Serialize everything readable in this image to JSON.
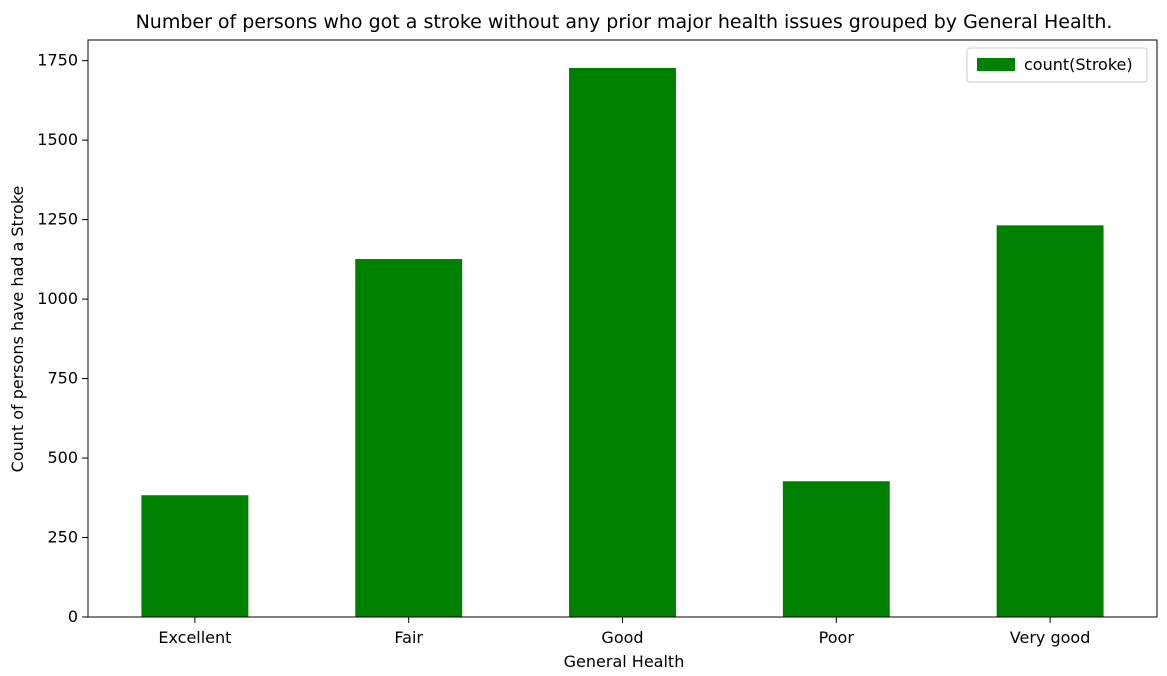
{
  "chart_data": {
    "type": "bar",
    "title": "Number of persons who got a stroke without any prior major health issues grouped by General Health.",
    "xlabel": "General Health",
    "ylabel": "Count of persons have had a Stroke",
    "categories": [
      "Excellent",
      "Fair",
      "Good",
      "Poor",
      "Very good"
    ],
    "series": [
      {
        "name": "count(Stroke)",
        "values": [
          383,
          1126,
          1727,
          427,
          1232
        ],
        "color": "#008000"
      }
    ],
    "ylim": [
      0,
      1815
    ],
    "yticks": [
      0,
      250,
      500,
      750,
      1000,
      1250,
      1500,
      1750
    ],
    "grid": false,
    "legend": "top-right"
  }
}
